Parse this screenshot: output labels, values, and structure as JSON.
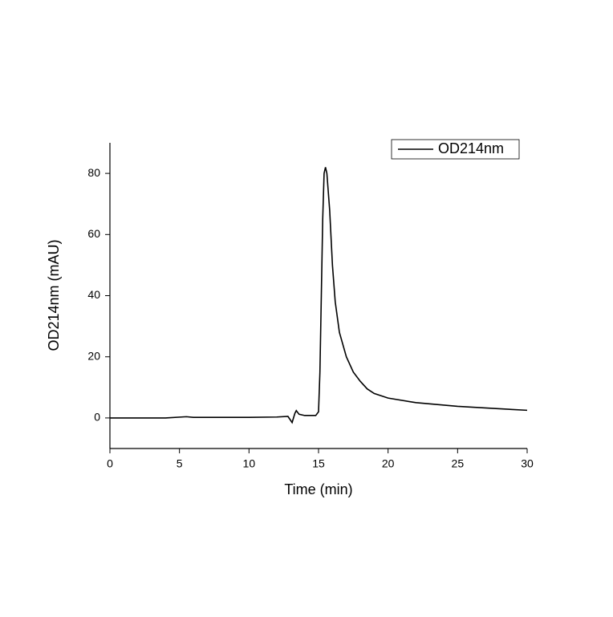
{
  "chart_data": {
    "type": "line",
    "x_label": "Time (min)",
    "y_label": "OD214nm (mAU)",
    "xlim": [
      0,
      30
    ],
    "xticks": [
      0,
      5,
      10,
      15,
      20,
      25,
      30
    ],
    "ylim": [
      -10,
      90
    ],
    "yticks": [
      0,
      20,
      40,
      60,
      80
    ],
    "legend": "upper right",
    "x": [
      0,
      4,
      5.5,
      6,
      10,
      12,
      12.8,
      13.1,
      13.3,
      13.4,
      13.6,
      14,
      14.8,
      15.0,
      15.1,
      15.2,
      15.3,
      15.4,
      15.5,
      15.6,
      15.8,
      16,
      16.2,
      16.5,
      17,
      17.5,
      18,
      18.5,
      19,
      20,
      22,
      25,
      28,
      30
    ],
    "series": [
      {
        "name": "OD214nm",
        "color": "#000000",
        "values": [
          0,
          0,
          0.4,
          0.2,
          0.2,
          0.3,
          0.5,
          -1.5,
          1.5,
          2.4,
          1.2,
          0.8,
          0.8,
          2,
          15,
          40,
          65,
          80,
          82,
          80,
          68,
          50,
          38,
          28,
          20,
          15,
          12,
          9.5,
          8,
          6.5,
          5,
          3.8,
          3,
          2.5
        ]
      }
    ]
  }
}
